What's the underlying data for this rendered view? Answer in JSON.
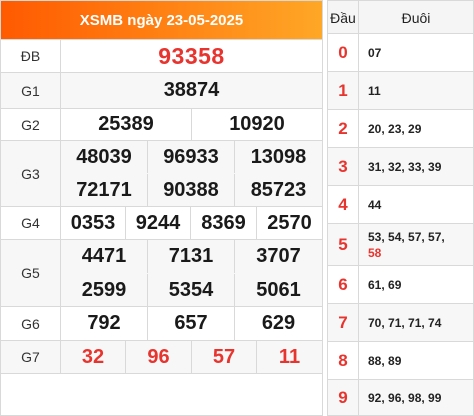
{
  "header": {
    "title": "XSMB ngày 23-05-2025"
  },
  "prizes": {
    "db": {
      "label": "ĐB",
      "numbers": [
        "93358"
      ]
    },
    "g1": {
      "label": "G1",
      "numbers": [
        "38874"
      ]
    },
    "g2": {
      "label": "G2",
      "numbers": [
        "25389",
        "10920"
      ]
    },
    "g3": {
      "label": "G3",
      "numbers": [
        "48039",
        "96933",
        "13098",
        "72171",
        "90388",
        "85723"
      ]
    },
    "g4": {
      "label": "G4",
      "numbers": [
        "0353",
        "9244",
        "8369",
        "2570"
      ]
    },
    "g5": {
      "label": "G5",
      "numbers": [
        "4471",
        "7131",
        "3707",
        "2599",
        "5354",
        "5061"
      ]
    },
    "g6": {
      "label": "G6",
      "numbers": [
        "792",
        "657",
        "629"
      ]
    },
    "g7": {
      "label": "G7",
      "numbers": [
        "32",
        "96",
        "57",
        "11"
      ]
    }
  },
  "loto": {
    "head_dau": "Đầu",
    "head_duoi": "Đuôi",
    "rows": [
      {
        "dau": "0",
        "duoi": "07"
      },
      {
        "dau": "1",
        "duoi": "11"
      },
      {
        "dau": "2",
        "duoi": "20, 23, 29"
      },
      {
        "dau": "3",
        "duoi": "31, 32, 33, 39"
      },
      {
        "dau": "4",
        "duoi": "44"
      },
      {
        "dau": "5",
        "duoi": "53, 54, 57, 57,",
        "duoi_extra": "58"
      },
      {
        "dau": "6",
        "duoi": "61, 69"
      },
      {
        "dau": "7",
        "duoi": "70, 71, 71, 74"
      },
      {
        "dau": "8",
        "duoi": "88, 89"
      },
      {
        "dau": "9",
        "duoi": "92, 96, 98, 99"
      }
    ]
  },
  "colors": {
    "accent_red": "#e8342e",
    "header_orange_start": "#ff5a00",
    "header_orange_end": "#ffa726"
  }
}
